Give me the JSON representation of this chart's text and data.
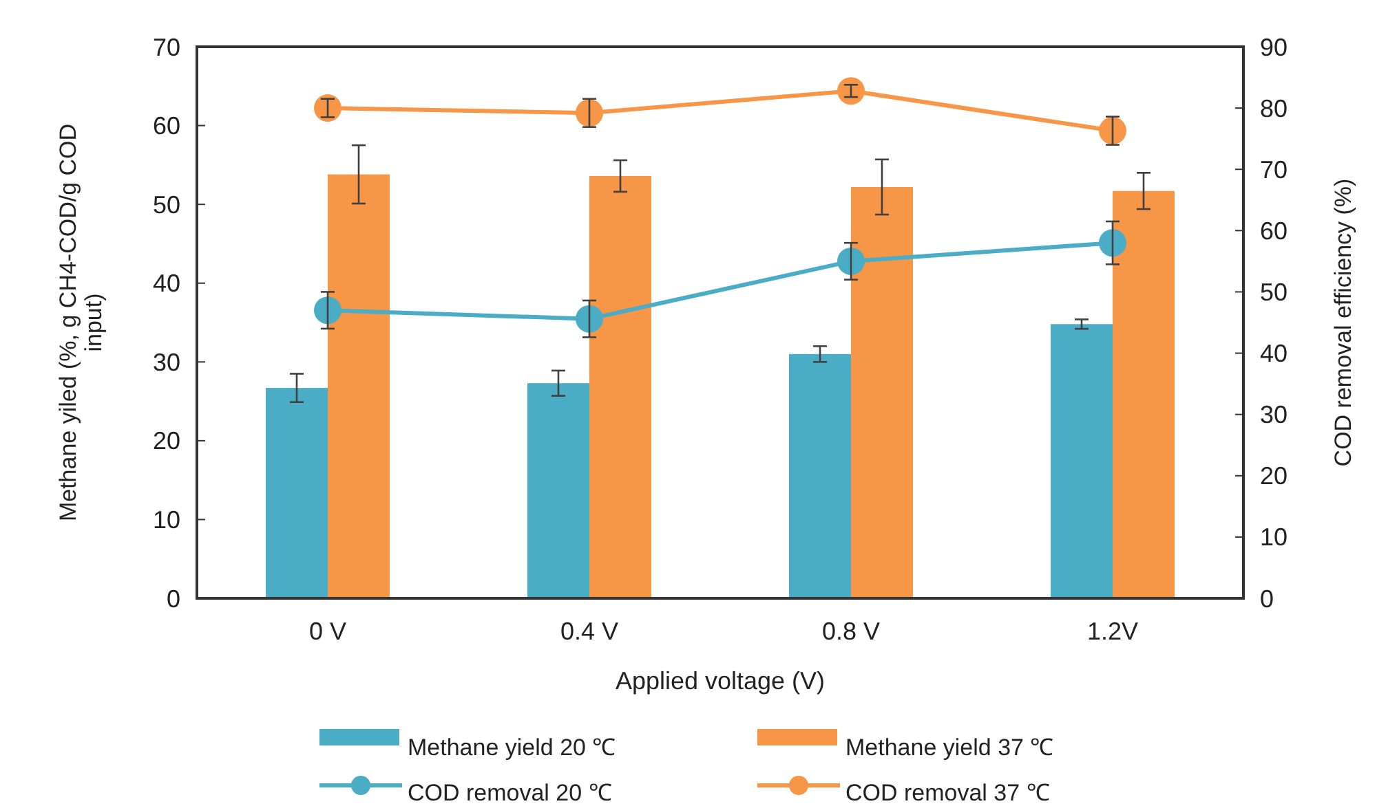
{
  "chart_data": {
    "type": "bar",
    "xlabel": "Applied voltage (V)",
    "ylabel": "Methane yiled (%, g CH4-COD/g COD input)",
    "y2label": "COD removal efficiency (%)",
    "categories": [
      "0 V",
      "0.4 V",
      "0.8 V",
      "1.2V"
    ],
    "series": [
      {
        "name": "Methane yield 20 ℃",
        "color": "#4bacc6",
        "values": [
          26.7,
          27.3,
          31,
          34.8
        ],
        "errors": [
          1.8,
          1.6,
          1,
          0.6
        ]
      },
      {
        "name": "Methane yield 37 ℃",
        "color": "#f79646",
        "values": [
          53.8,
          53.6,
          52.2,
          51.7
        ],
        "errors": [
          3.7,
          2,
          3.5,
          2.3
        ]
      },
      {
        "name": "COD removal 20 ℃",
        "type": "line",
        "axis": "y2",
        "color": "#4bacc6",
        "values": [
          47,
          45.6,
          55,
          58
        ],
        "errors": [
          3,
          3,
          3,
          3.5
        ]
      },
      {
        "name": "COD removal 37 ℃",
        "type": "line",
        "axis": "y2",
        "color": "#f79646",
        "values": [
          80,
          79.2,
          82.8,
          76.3
        ],
        "errors": [
          1.5,
          2.3,
          1,
          2.3
        ]
      }
    ],
    "ylim": [
      0,
      70
    ],
    "yticks": [
      0,
      10,
      20,
      30,
      40,
      50,
      60,
      70
    ],
    "y2lim": [
      0,
      90
    ],
    "y2ticks": [
      0,
      10,
      20,
      30,
      40,
      50,
      60,
      70,
      80,
      90
    ],
    "marker": "circle",
    "legend": "bottom"
  }
}
